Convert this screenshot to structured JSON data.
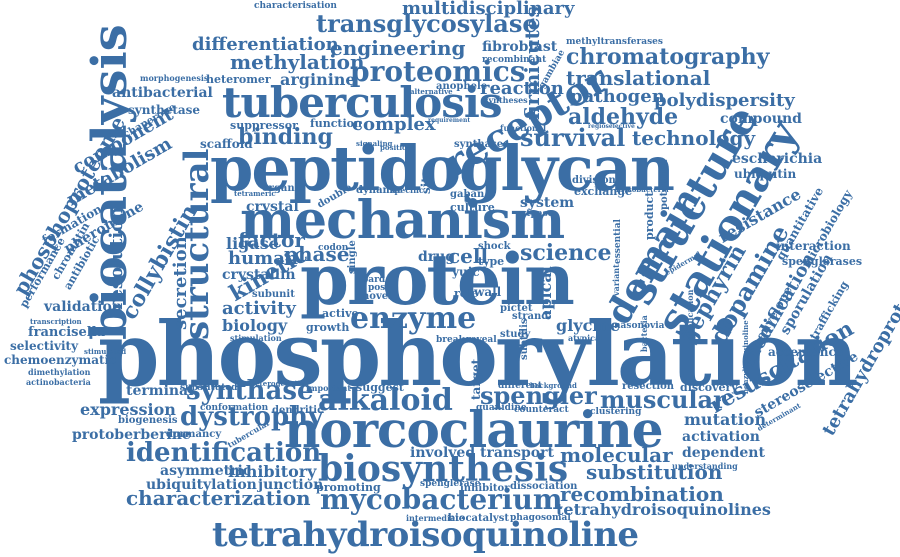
{
  "color": "#3b6ea5",
  "words": {
    "phosphorylation": "phosphorylation",
    "peptidoglycan": "peptidoglycan",
    "protein": "protein",
    "mechanism": "mechanism",
    "tuberculosis": "tuberculosis",
    "norcoclaurine": "norcoclaurine",
    "biosynthesis": "biosynthesis",
    "tetrahydroisoquinoline": "tetrahydroisoquinoline",
    "biocatalysis": "biocatalysis",
    "structure": "structure",
    "stationary": "stationary",
    "domain": "domain",
    "receptor": "receptor",
    "proteomics": "proteomics",
    "enzyme": "enzyme",
    "alkaloid": "alkaloid",
    "structural": "structural",
    "mycobacterium": "mycobacterium",
    "identification": "identification",
    "dystrophy": "dystrophy",
    "synthase": "synthase",
    "spengler": "spengler",
    "muscular": "muscular",
    "resuscitation": "resuscitation",
    "chromatography": "chromatography",
    "transglycosylase": "transglycosylase",
    "engineering": "engineering",
    "methylation": "methylation",
    "differentiation": "differentiation",
    "translational": "translational",
    "pathogen": "pathogen",
    "aldehyde": "aldehyde",
    "polydispersity": "polydispersity",
    "survival": "survival",
    "technology": "technology",
    "science": "science",
    "substitution": "substitution",
    "molecular": "molecular",
    "recombination": "recombination",
    "tetrahydroisoquinolines": "tetrahydroisoquinolines",
    "characterization": "characterization",
    "collybistin": "collybistin",
    "phosphoproteome": "phosphoproteome",
    "tetrahydroprotoberberine": "tetrahydroprotoberberine",
    "gephyrin": "gephyrin",
    "dopamine": "dopamine",
    "firmicutes": "firmicutes",
    "multidisciplinary": "multidisciplinary",
    "arginine": "arginine",
    "reaction": "reaction",
    "binding": "binding",
    "complex": "complex",
    "kinetic": "kinetic",
    "factor": "factor",
    "phase": "phase",
    "human": "human",
    "activity": "activity",
    "biology": "biology",
    "metabolism": "metabolism",
    "component": "component",
    "resolution": "resolution",
    "secretion": "secretion",
    "crystallin": "crystallin",
    "ligase": "ligase",
    "crystal": "crystal",
    "cell": "cell",
    "yuic": "yuic",
    "apical": "apical",
    "glycine": "glycine",
    "modification": "modification",
    "resistance": "resistance",
    "expression": "expression",
    "mutation": "mutation",
    "activation": "activation",
    "dependent": "dependent",
    "stereoselective": "stereoselective",
    "inhibitory": "inhibitory",
    "asymmetric": "asymmetric",
    "ubiquitylation": "ubiquitylation",
    "junction": "junction",
    "involved": "involved",
    "transport": "transport",
    "protoberberine": "protoberberine",
    "terminal": "terminal",
    "validation": "validation",
    "selectivity": "selectivity",
    "francisella": "francisella",
    "chemoenzymatic": "chemoenzymatic",
    "antibacterial": "antibacterial",
    "synthetase": "synthetase",
    "heteromer": "heteromer",
    "fibroblast": "fibroblast",
    "escherichia": "escherichia",
    "ubiquitin": "ubiquitin",
    "compound": "compound",
    "interaction": "interaction",
    "spenglerases": "spenglerases",
    "acceptance": "acceptance",
    "scaffold": "scaffold",
    "suppressor": "suppressor",
    "function": "function",
    "synthases": "synthases",
    "pheromone": "pheromone",
    "formation": "formation",
    "performance": "performance",
    "chromatin": "chromatin",
    "antibiotic": "antibiotic",
    "growth": "growth",
    "active": "active",
    "drug": "drug",
    "system": "system",
    "culture": "culture",
    "site": "site",
    "target": "target",
    "wall": "wall",
    "strand": "strand",
    "pictet": "pictet",
    "suggest": "suggest",
    "dendritic": "dendritic",
    "dormancy": "dormancy",
    "biogenesis": "biogenesis",
    "conformation": "conformation",
    "substituted": "substituted",
    "promoting": "promoting",
    "inhibitor": "inhibitor",
    "dissociation": "dissociation",
    "spenglerase": "spenglerase",
    "biocatalyst": "biocatalyst",
    "phagosomal": "phagosomal",
    "intermediate": "intermediate",
    "different": "different",
    "counteract": "counteract",
    "guanidine": "guanidine",
    "clustering": "clustering",
    "resection": "resection",
    "discovery": "discovery",
    "sporulation": "sporulation",
    "envelope": "envelope",
    "quantitative": "quantitative",
    "microbiology": "microbiology",
    "potential": "potential",
    "essential": "essential",
    "product": "product",
    "exchange": "exchange",
    "division": "division",
    "shock": "shock",
    "codon": "codon",
    "single": "single",
    "novel": "novel",
    "bard": "bard",
    "post": "post",
    "role": "role",
    "break": "break",
    "reveal": "reveal",
    "study": "study",
    "subtilis": "subtilis",
    "nasonovia": "nasonovia",
    "atypical": "atypical",
    "methyltransferases": "methyltransferases",
    "characterisation": "characterisation",
    "recombinant": "recombinant",
    "gambiae": "gambiae",
    "anophele": "anophele",
    "alternative": "alternative",
    "morphogenesis": "morphogenesis",
    "chaperone": "chaperone",
    "tetrameric": "tetrameric",
    "organic": "organic",
    "dynamic": "dynamic",
    "double": "double",
    "gaban": "gaban",
    "gtpase": "gtpase",
    "functional": "functional",
    "synthesis": "synthesis",
    "stimulated": "stimulated",
    "transcription": "transcription",
    "dimethylation": "dimethylation",
    "actinobacteria": "actinobacteria",
    "heterogeneity": "heterogeneity",
    "type": "type",
    "tuberculae": "tubercular",
    "understanding": "understanding",
    "determinant": "determinant",
    "trafficking": "trafficking",
    "benzylisoquinoline": "benzylisoquinoline",
    "epidermal": "epidermal",
    "bacteria": "bacteria",
    "application": "application",
    "variant": "variant",
    "subunit": "subunit",
    "important": "important",
    "signaling": "signaling",
    "stimulation": "stimulation",
    "position": "position",
    "specific": "specific",
    "mycobacteria": "mycobacteria",
    "syntheses": "syntheses",
    "requirement": "requirement",
    "background": "background",
    "regioselective": "regioselective"
  }
}
